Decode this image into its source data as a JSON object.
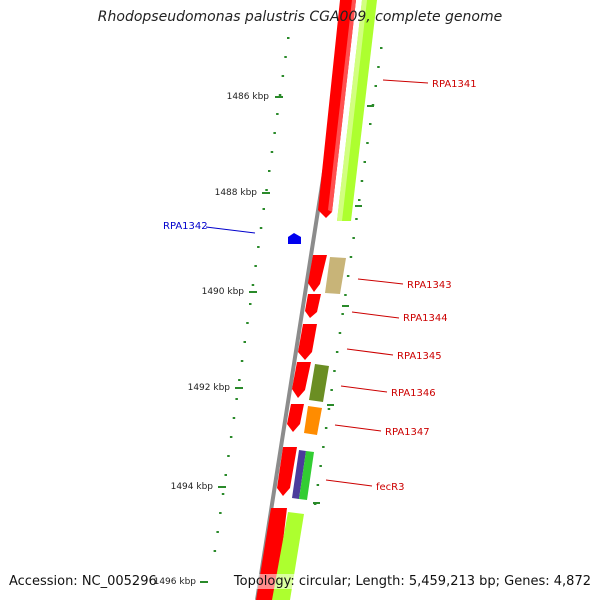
{
  "title": "Rhodopseudomonas palustris CGA009, complete genome",
  "accession_label": "Accession: NC_005296",
  "summary_label": "Topology: circular; Length: 5,459,213 bp; Genes: 4,872",
  "colors": {
    "backbone": "#8c8c8c",
    "cds": "#ff0000",
    "tick": "#2a8a2a",
    "forward_label": "#cc0000",
    "reverse_label": "#0000cc"
  },
  "scale_ticks": [
    {
      "kbp": 1486,
      "label": "1486 kbp"
    },
    {
      "kbp": 1488,
      "label": "1488 kbp"
    },
    {
      "kbp": 1490,
      "label": "1490 kbp"
    },
    {
      "kbp": 1492,
      "label": "1492 kbp"
    },
    {
      "kbp": 1494,
      "label": "1494 kbp"
    },
    {
      "kbp": 1496,
      "label": "1496 kbp"
    }
  ],
  "gene_labels": [
    {
      "name": "RPA1341",
      "strand": "forward"
    },
    {
      "name": "RPA1342",
      "strand": "reverse"
    },
    {
      "name": "RPA1343",
      "strand": "forward"
    },
    {
      "name": "RPA1344",
      "strand": "forward"
    },
    {
      "name": "RPA1345",
      "strand": "forward"
    },
    {
      "name": "RPA1346",
      "strand": "forward"
    },
    {
      "name": "RPA1347",
      "strand": "forward"
    },
    {
      "name": "fecR3",
      "strand": "forward"
    }
  ],
  "feature_colors": {
    "RPA1341": "#adff2f",
    "RPA1343": "#c8b478",
    "RPA1346": "#6b8e23",
    "RPA1347": "#ff8c00",
    "fecR3_a": "#4b3c9c",
    "fecR3_b": "#32cd32",
    "next": "#adff2f"
  }
}
